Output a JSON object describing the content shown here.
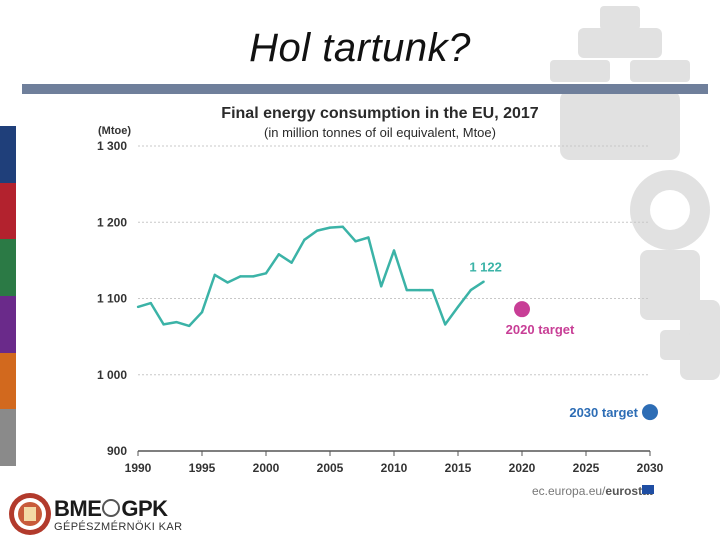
{
  "slide": {
    "title": "Hol tartunk?",
    "colors": {
      "title_bar": "#6f7f9b",
      "strips": [
        "#1f3f7a",
        "#b3222e",
        "#2b7a45",
        "#6a2a8a",
        "#d2691e",
        "#8a8a8a"
      ]
    }
  },
  "chart_data": {
    "type": "line",
    "title": "Final energy consumption in the EU, 2017",
    "subtitle": "(in million tonnes of oil equivalent, Mtoe)",
    "ylabel": "(Mtoe)",
    "xlabel": "",
    "x": [
      1990,
      1991,
      1992,
      1993,
      1994,
      1995,
      1996,
      1997,
      1998,
      1999,
      2000,
      2001,
      2002,
      2003,
      2004,
      2005,
      2006,
      2007,
      2008,
      2009,
      2010,
      2011,
      2012,
      2013,
      2014,
      2015,
      2016,
      2017
    ],
    "series": [
      {
        "name": "Final energy consumption",
        "color": "#3bb3a7",
        "values": [
          1089,
          1094,
          1066,
          1069,
          1064,
          1082,
          1131,
          1121,
          1129,
          1129,
          1133,
          1158,
          1147,
          1177,
          1189,
          1193,
          1194,
          1175,
          1180,
          1116,
          1163,
          1111,
          1111,
          1111,
          1066,
          1089,
          1111,
          1122
        ]
      }
    ],
    "xlim": [
      1990,
      2030
    ],
    "ylim": [
      900,
      1300
    ],
    "xticks": [
      1990,
      1995,
      2000,
      2005,
      2010,
      2015,
      2020,
      2025,
      2030
    ],
    "yticks": [
      900,
      1000,
      1100,
      1200,
      1300
    ],
    "ytick_labels": [
      "900",
      "1 000",
      "1 100",
      "1 200",
      "1 300"
    ],
    "grid": true,
    "last_value_label": "1 122",
    "targets": [
      {
        "label": "2020 target",
        "year": 2020,
        "value": 1086,
        "color": "#c83e96"
      },
      {
        "label": "2030 target",
        "year": 2030,
        "value": 951,
        "color": "#2d6db5"
      }
    ],
    "source": "ec.europa.eu/",
    "source_bold": "eurostat"
  },
  "logo": {
    "main_left": "BME",
    "main_right": "GPK",
    "sub": "GÉPÉSZMÉRNÖKI KAR"
  }
}
